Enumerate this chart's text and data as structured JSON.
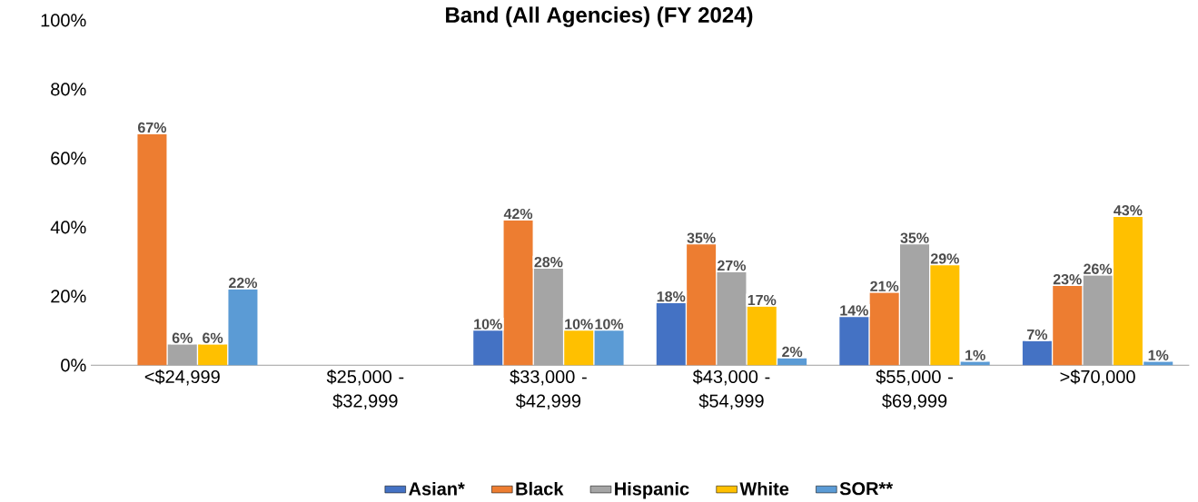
{
  "chart_data": {
    "type": "bar",
    "title": "Band (All Agencies) (FY 2024)",
    "categories": [
      "<$24,999",
      "$25,000 - $32,999",
      "$33,000 - $42,999",
      "$43,000 - $54,999",
      "$55,000 - $69,999",
      ">$70,000"
    ],
    "series": [
      {
        "name": "Asian*",
        "color": "#4472c4",
        "values": [
          null,
          null,
          10,
          18,
          14,
          7
        ],
        "value_labels": [
          null,
          null,
          "10%",
          "18%",
          "14%",
          "7%"
        ]
      },
      {
        "name": "Black",
        "color": "#ed7d31",
        "values": [
          67,
          null,
          42,
          35,
          21,
          23
        ],
        "value_labels": [
          "67%",
          null,
          "42%",
          "35%",
          "21%",
          "23%"
        ]
      },
      {
        "name": "Hispanic",
        "color": "#a5a5a5",
        "values": [
          6,
          null,
          28,
          27,
          35,
          26
        ],
        "value_labels": [
          "6%",
          null,
          "28%",
          "27%",
          "35%",
          "26%"
        ]
      },
      {
        "name": "White",
        "color": "#ffc000",
        "values": [
          6,
          null,
          10,
          17,
          29,
          43
        ],
        "value_labels": [
          "6%",
          null,
          "10%",
          "17%",
          "29%",
          "43%"
        ]
      },
      {
        "name": "SOR**",
        "color": "#5b9bd5",
        "values": [
          22,
          null,
          10,
          2,
          1,
          1
        ],
        "value_labels": [
          "22%",
          null,
          "10%",
          "2%",
          "1%",
          "1%"
        ]
      }
    ],
    "ylim": [
      0,
      100
    ],
    "yticks": [
      {
        "value": 0,
        "label": "0%"
      },
      {
        "value": 20,
        "label": "20%"
      },
      {
        "value": 40,
        "label": "40%"
      },
      {
        "value": 60,
        "label": "60%"
      },
      {
        "value": 80,
        "label": "80%"
      },
      {
        "value": 100,
        "label": "100%"
      }
    ],
    "grid": false,
    "legend": "bottom"
  }
}
